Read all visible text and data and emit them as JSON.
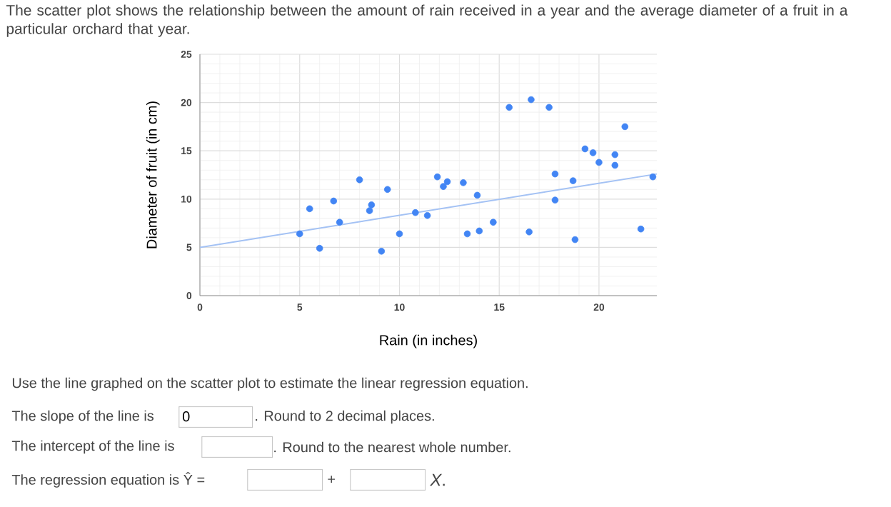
{
  "chart_data": {
    "type": "scatter",
    "title": "The scatter plot shows the relationship between the amount of rain received in a year and the average diameter of a fruit in a particular orchard that year.",
    "xlabel": "Rain (in inches)",
    "ylabel": "Diameter of fruit (in cm)",
    "xlim": [
      0,
      22.9
    ],
    "ylim": [
      0,
      25
    ],
    "xticks": [
      0,
      5,
      10,
      15,
      20
    ],
    "yticks": [
      0,
      5,
      10,
      15,
      20,
      25
    ],
    "grid": true,
    "series": [
      {
        "type": "scatter",
        "marker": "circle",
        "color": "#4285f4",
        "x": [
          5.0,
          5.5,
          6.0,
          6.7,
          7.0,
          8.0,
          8.5,
          8.6,
          9.4,
          9.1,
          10.0,
          10.8,
          11.4,
          11.9,
          12.2,
          12.4,
          13.2,
          13.4,
          13.9,
          14.0,
          14.7,
          15.5,
          16.5,
          16.6,
          17.5,
          17.8,
          17.8,
          18.7,
          18.8,
          19.3,
          19.7,
          20.0,
          20.8,
          20.8,
          21.3,
          22.1,
          22.7
        ],
        "values": [
          6.4,
          9.0,
          4.9,
          9.8,
          7.6,
          12.0,
          8.8,
          9.4,
          11.0,
          4.6,
          6.4,
          8.6,
          8.3,
          12.3,
          11.3,
          11.8,
          11.7,
          6.4,
          10.4,
          6.7,
          7.6,
          19.5,
          6.6,
          20.3,
          19.5,
          12.6,
          9.9,
          11.9,
          5.8,
          15.2,
          14.8,
          13.8,
          14.6,
          13.5,
          17.5,
          6.9,
          12.3
        ]
      },
      {
        "type": "line",
        "marker": "none",
        "color": "#a4c2f4",
        "x": [
          0,
          22.9
        ],
        "values": [
          5,
          12.6
        ]
      }
    ],
    "annotations": [
      "Use the line graphed on the scatter plot to estimate the linear regression equation.",
      "The slope of the line is",
      "0",
      ". Round to 2 decimal places.",
      "The intercept of the line is",
      ". Round to the nearest whole number.",
      "The regression equation is Ŷ =",
      "+",
      "*X*."
    ]
  }
}
